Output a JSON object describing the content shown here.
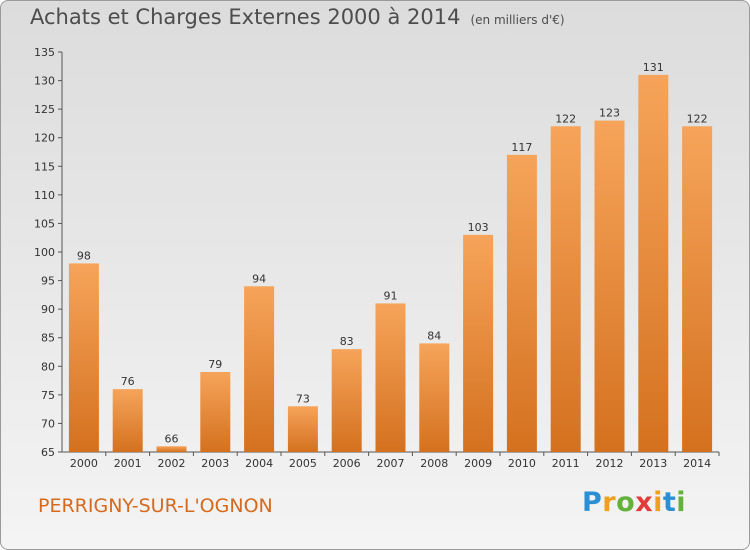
{
  "header": {
    "title": "Achats et Charges Externes 2000 à 2014",
    "unit": "(en milliers d'€)"
  },
  "footer": {
    "commune": "PERRIGNY-SUR-L'OGNON",
    "logo_text": "Proxiti"
  },
  "colors": {
    "bar_light": "#f6a45a",
    "bar_dark": "#d4711f",
    "commune_text": "#d56a1e"
  },
  "chart_data": {
    "type": "bar",
    "title": "Achats et Charges Externes 2000 à 2014",
    "subtitle": "(en milliers d'€)",
    "xlabel": "",
    "ylabel": "",
    "categories": [
      "2000",
      "2001",
      "2002",
      "2003",
      "2004",
      "2005",
      "2006",
      "2007",
      "2008",
      "2009",
      "2010",
      "2011",
      "2012",
      "2013",
      "2014"
    ],
    "values": [
      98,
      76,
      66,
      79,
      94,
      73,
      83,
      91,
      84,
      103,
      117,
      122,
      123,
      131,
      122
    ],
    "ylim": [
      65,
      135
    ],
    "yticks": [
      65,
      70,
      75,
      80,
      85,
      90,
      95,
      100,
      105,
      110,
      115,
      120,
      125,
      130,
      135
    ],
    "grid": false,
    "legend": "none",
    "data_labels": true
  }
}
